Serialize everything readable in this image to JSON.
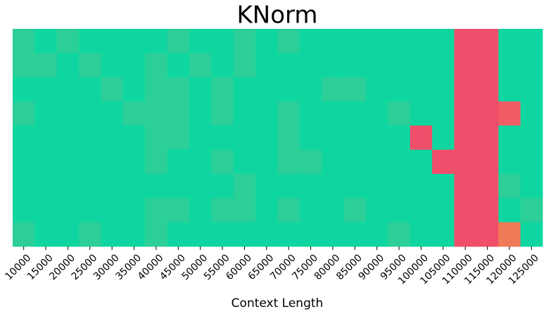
{
  "chart_data": {
    "type": "heatmap",
    "title": "KNorm",
    "xlabel": "Context Length",
    "categories": [
      "10000",
      "15000",
      "20000",
      "25000",
      "30000",
      "35000",
      "40000",
      "45000",
      "50000",
      "55000",
      "60000",
      "65000",
      "70000",
      "75000",
      "80000",
      "85000",
      "90000",
      "95000",
      "100000",
      "105000",
      "110000",
      "115000",
      "120000",
      "125000"
    ],
    "colorscale": [
      {
        "value": 0,
        "color": "#f04e6a"
      },
      {
        "value": 0.3,
        "color": "#ef7a57"
      },
      {
        "value": 0.9,
        "color": "#2ccf98"
      },
      {
        "value": 1,
        "color": "#0fd6a0"
      }
    ],
    "values": [
      [
        0.9,
        1,
        0.9,
        1,
        1,
        1,
        1,
        0.9,
        1,
        1,
        0.9,
        1,
        0.9,
        1,
        1,
        1,
        1,
        1,
        1,
        1,
        0,
        0,
        1,
        1
      ],
      [
        0.9,
        0.9,
        1,
        0.9,
        1,
        1,
        0.9,
        1,
        0.9,
        1,
        0.9,
        1,
        1,
        1,
        1,
        1,
        1,
        1,
        1,
        1,
        0,
        0,
        1,
        1
      ],
      [
        1,
        1,
        1,
        1,
        0.9,
        1,
        0.9,
        0.9,
        1,
        0.9,
        1,
        1,
        1,
        1,
        0.9,
        0.9,
        1,
        1,
        1,
        1,
        0,
        0,
        1,
        1
      ],
      [
        0.9,
        1,
        1,
        1,
        1,
        0.9,
        0.9,
        0.9,
        1,
        0.9,
        1,
        1,
        0.9,
        1,
        1,
        1,
        1,
        0.9,
        1,
        1,
        0,
        0,
        0.1,
        1
      ],
      [
        1,
        1,
        1,
        1,
        1,
        1,
        0.9,
        0.9,
        1,
        1,
        1,
        1,
        0.9,
        1,
        1,
        1,
        1,
        1,
        0,
        1,
        0,
        0,
        1,
        1
      ],
      [
        1,
        1,
        1,
        1,
        1,
        1,
        0.9,
        1,
        1,
        0.9,
        1,
        1,
        0.9,
        0.9,
        1,
        1,
        1,
        1,
        1,
        0,
        0,
        0,
        1,
        1
      ],
      [
        1,
        1,
        1,
        1,
        1,
        1,
        1,
        1,
        1,
        1,
        0.9,
        1,
        1,
        1,
        1,
        1,
        1,
        1,
        1,
        1,
        0,
        0,
        0.9,
        1
      ],
      [
        1,
        1,
        1,
        1,
        1,
        1,
        0.9,
        0.9,
        1,
        0.9,
        0.9,
        1,
        0.9,
        1,
        1,
        0.9,
        1,
        1,
        1,
        1,
        0,
        0,
        1,
        0.9
      ],
      [
        0.9,
        1,
        1,
        0.9,
        1,
        1,
        0.9,
        1,
        1,
        1,
        1,
        1,
        1,
        1,
        1,
        1,
        1,
        0.9,
        1,
        1,
        0,
        0,
        0.3,
        1
      ]
    ]
  }
}
